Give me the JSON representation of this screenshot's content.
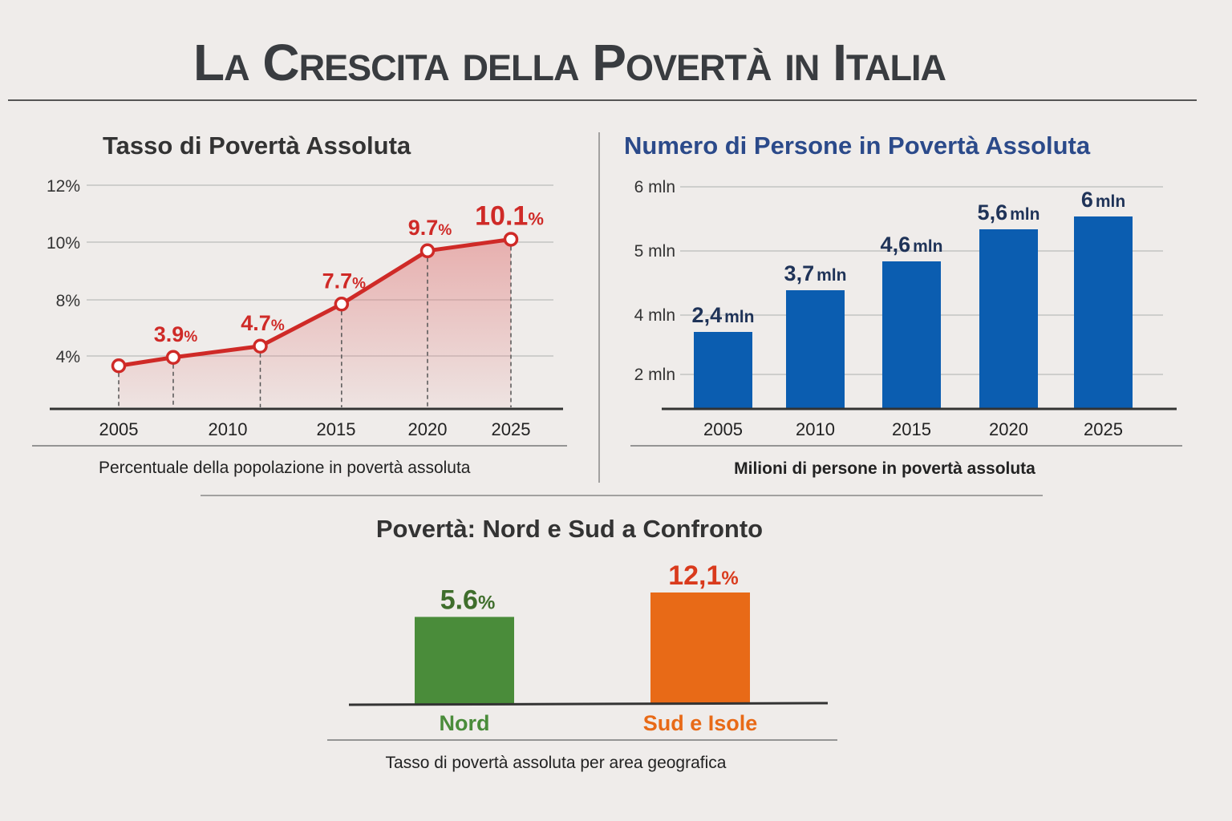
{
  "title": "La Crescita della Povertà in Italia",
  "colors": {
    "background": "#efecea",
    "red": "#cf2a27",
    "blue": "#0b5db0",
    "navy": "#1f3358",
    "green": "#4a8c3a",
    "orange": "#e86a17",
    "title_blue": "#2b4a8a"
  },
  "chart_data": [
    {
      "type": "line",
      "title": "Tasso di Povertà Assoluta",
      "caption": "Percentuale della popolazione in povertà assoluta",
      "x_ticks": [
        "2005",
        "2010",
        "2015",
        "2020",
        "2025"
      ],
      "y_ticks": [
        {
          "value": 4,
          "label": "4%"
        },
        {
          "value": 8,
          "label": "8%"
        },
        {
          "value": 10,
          "label": "10%"
        },
        {
          "value": 12,
          "label": "12%"
        }
      ],
      "points": [
        {
          "x": 2005,
          "y": 3.3,
          "label": ""
        },
        {
          "x": 2007.5,
          "y": 3.9,
          "label": "3.9",
          "unit": "%"
        },
        {
          "x": 2011.5,
          "y": 4.7,
          "label": "4.7",
          "unit": "%"
        },
        {
          "x": 2015.3,
          "y": 7.7,
          "label": "7.7",
          "unit": "%"
        },
        {
          "x": 2020,
          "y": 9.7,
          "label": "9.7",
          "unit": "%"
        },
        {
          "x": 2025,
          "y": 10.1,
          "label": "10.1",
          "unit": "%"
        }
      ]
    },
    {
      "type": "bar",
      "title": "Numero di Persone in Povertà Assoluta",
      "caption": "Milioni di persone in povertà assoluta",
      "y_ticks": [
        {
          "value": 2,
          "label": "2 mln"
        },
        {
          "value": 4,
          "label": "4 mln"
        },
        {
          "value": 5,
          "label": "5 mln"
        },
        {
          "value": 6,
          "label": "6 mln"
        }
      ],
      "categories": [
        "2005",
        "2010",
        "2015",
        "2020",
        "2025"
      ],
      "values": [
        2.4,
        3.7,
        4.6,
        5.6,
        6
      ],
      "labels": [
        {
          "num": "2,4",
          "unit": "mln"
        },
        {
          "num": "3,7",
          "unit": "mln"
        },
        {
          "num": "4,6",
          "unit": "mln"
        },
        {
          "num": "5,6",
          "unit": "mln"
        },
        {
          "num": "6",
          "unit": "mln"
        }
      ]
    },
    {
      "type": "bar",
      "title": "Povertà: Nord e Sud a Confronto",
      "caption": "Tasso di povertà assoluta per area geografica",
      "categories": [
        "Nord",
        "Sud e Isole"
      ],
      "values": [
        5.6,
        12.1
      ],
      "labels": [
        {
          "num": "5.6",
          "unit": "%"
        },
        {
          "num": "12,1",
          "unit": "%"
        }
      ]
    }
  ]
}
